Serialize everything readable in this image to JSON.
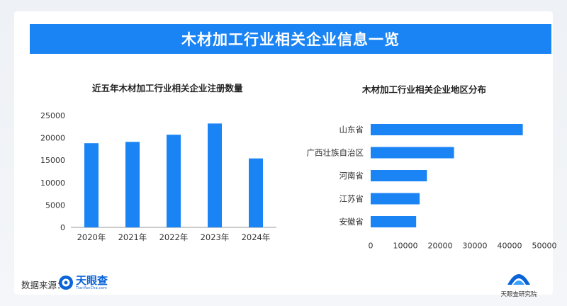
{
  "header": {
    "title": "木材加工行业相关企业信息一览"
  },
  "footer": {
    "source_label": "数据来源：",
    "logo_name": "天眼查",
    "logo_sub": "TianYanCha.com",
    "institute": "天眼查研究院"
  },
  "colors": {
    "accent": "#1a84f5",
    "text": "#333333"
  },
  "chart_data": [
    {
      "type": "bar",
      "title": "近五年木材加工行业相关企业注册数量",
      "categories": [
        "2020年",
        "2021年",
        "2022年",
        "2023年",
        "2024年"
      ],
      "values": [
        18800,
        19100,
        20700,
        23200,
        15400
      ],
      "yticks": [
        0,
        5000,
        10000,
        15000,
        20000,
        25000
      ],
      "ylim": [
        0,
        25000
      ],
      "xlabel": "",
      "ylabel": "",
      "grid": false,
      "color": "#1a84f5"
    },
    {
      "type": "bar",
      "orientation": "horizontal",
      "title": "木材加工行业相关企业地区分布",
      "categories": [
        "山东省",
        "广西壮族自治区",
        "河南省",
        "江苏省",
        "安徽省"
      ],
      "values": [
        43800,
        24000,
        16200,
        14100,
        13100
      ],
      "xticks": [
        0,
        10000,
        20000,
        30000,
        40000,
        50000
      ],
      "xlim": [
        0,
        50000
      ],
      "xlabel": "",
      "ylabel": "",
      "grid": false,
      "color": "#1a84f5"
    }
  ]
}
